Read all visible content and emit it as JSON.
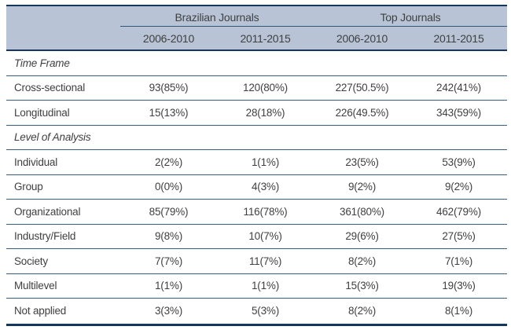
{
  "table": {
    "col_groups": [
      {
        "label": "Brazilian Journals"
      },
      {
        "label": "Top Journals"
      }
    ],
    "col_headers": [
      "2006-2010",
      "2011-2015",
      "2006-2010",
      "2011-2015"
    ],
    "sections": [
      {
        "title": "Time Frame",
        "rows": [
          {
            "label": "Cross-sectional",
            "values": [
              "93(85%)",
              "120(80%)",
              "227(50.5%)",
              "242(41%)"
            ]
          },
          {
            "label": "Longitudinal",
            "values": [
              "15(13%)",
              "28(18%)",
              "226(49.5%)",
              "343(59%)"
            ]
          }
        ]
      },
      {
        "title": "Level of Analysis",
        "rows": [
          {
            "label": "Individual",
            "values": [
              "2(2%)",
              "1(1%)",
              "23(5%)",
              "53(9%)"
            ]
          },
          {
            "label": "Group",
            "values": [
              "0(0%)",
              "4(3%)",
              "9(2%)",
              "9(2%)"
            ]
          },
          {
            "label": "Organizational",
            "values": [
              "85(79%)",
              "116(78%)",
              "361(80%)",
              "462(79%)"
            ]
          },
          {
            "label": "Industry/Field",
            "values": [
              "9(8%)",
              "10(7%)",
              "29(6%)",
              "27(5%)"
            ]
          },
          {
            "label": "Society",
            "values": [
              "7(7%)",
              "11(7%)",
              "8(2%)",
              "7(1%)"
            ]
          },
          {
            "label": "Multilevel",
            "values": [
              "1(1%)",
              "1(1%)",
              "15(3%)",
              "19(3%)"
            ]
          },
          {
            "label": "Not applied",
            "values": [
              "3(3%)",
              "5(3%)",
              "8(2%)",
              "8(1%)"
            ]
          }
        ]
      }
    ],
    "colors": {
      "header_bg": "#b8c4d6",
      "border_dark": "#17365d",
      "row_line": "#3a5d82",
      "text": "#3f3f3f"
    }
  }
}
